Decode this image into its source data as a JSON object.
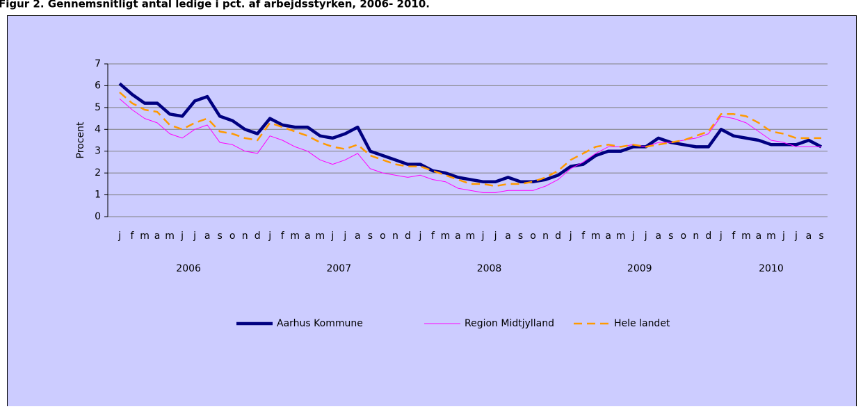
{
  "chart_data": {
    "type": "line",
    "title": "Figur 2. Gennemsnitligt antal ledige  i pct. af arbejdsstyrken, 2006- 2010.",
    "y_label": "Procent",
    "categories": [
      "j",
      "f",
      "m",
      "a",
      "m",
      "j",
      "j",
      "a",
      "s",
      "o",
      "n",
      "d",
      "j",
      "f",
      "m",
      "a",
      "m",
      "j",
      "j",
      "a",
      "s",
      "o",
      "n",
      "d",
      "j",
      "f",
      "m",
      "a",
      "m",
      "j",
      "j",
      "a",
      "s",
      "o",
      "n",
      "d",
      "j",
      "f",
      "m",
      "a",
      "m",
      "j",
      "j",
      "a",
      "s",
      "o",
      "n",
      "d",
      "j",
      "f",
      "m",
      "a",
      "m",
      "j",
      "j",
      "a",
      "s"
    ],
    "year_labels": [
      "2006",
      "2007",
      "2008",
      "2009",
      "2010"
    ],
    "ylim": [
      0,
      7
    ],
    "yticks": [
      0,
      1,
      2,
      3,
      4,
      5,
      6,
      7
    ],
    "grid": true,
    "legend": "bottom",
    "series": [
      {
        "name": "Aarhus Kommune",
        "color": "#000080",
        "values": [
          6.1,
          5.6,
          5.2,
          5.2,
          4.7,
          4.6,
          5.3,
          5.5,
          4.6,
          4.4,
          4.0,
          3.8,
          4.5,
          4.2,
          4.1,
          4.1,
          3.7,
          3.6,
          3.8,
          4.1,
          3.0,
          2.8,
          2.6,
          2.4,
          2.4,
          2.1,
          2.0,
          1.8,
          1.7,
          1.6,
          1.6,
          1.8,
          1.6,
          1.6,
          1.7,
          1.9,
          2.3,
          2.4,
          2.8,
          3.0,
          3.0,
          3.2,
          3.2,
          3.6,
          3.4,
          3.3,
          3.2,
          3.2,
          4.0,
          3.7,
          3.6,
          3.5,
          3.3,
          3.3,
          3.3,
          3.5,
          3.2
        ]
      },
      {
        "name": "Region Midtjylland",
        "color": "#ff00ff",
        "values": [
          5.4,
          4.9,
          4.5,
          4.3,
          3.8,
          3.6,
          4.0,
          4.2,
          3.4,
          3.3,
          3.0,
          2.9,
          3.7,
          3.5,
          3.2,
          3.0,
          2.6,
          2.4,
          2.6,
          2.9,
          2.2,
          2.0,
          1.9,
          1.8,
          1.9,
          1.7,
          1.6,
          1.3,
          1.2,
          1.1,
          1.1,
          1.2,
          1.2,
          1.2,
          1.4,
          1.7,
          2.2,
          2.5,
          2.9,
          3.2,
          3.2,
          3.3,
          3.2,
          3.4,
          3.4,
          3.5,
          3.6,
          3.8,
          4.6,
          4.5,
          4.3,
          3.9,
          3.5,
          3.4,
          3.2,
          3.2,
          3.2
        ]
      },
      {
        "name": "Hele landet",
        "color": "#ff9900",
        "values": [
          5.7,
          5.2,
          4.9,
          4.8,
          4.2,
          4.0,
          4.3,
          4.5,
          3.9,
          3.8,
          3.6,
          3.5,
          4.3,
          4.1,
          3.9,
          3.7,
          3.4,
          3.2,
          3.1,
          3.3,
          2.8,
          2.6,
          2.4,
          2.3,
          2.3,
          2.1,
          1.9,
          1.7,
          1.5,
          1.5,
          1.4,
          1.5,
          1.5,
          1.6,
          1.8,
          2.1,
          2.6,
          2.9,
          3.2,
          3.3,
          3.2,
          3.3,
          3.2,
          3.3,
          3.4,
          3.5,
          3.7,
          3.9,
          4.7,
          4.7,
          4.6,
          4.3,
          3.9,
          3.8,
          3.6,
          3.6,
          3.6
        ]
      }
    ]
  }
}
